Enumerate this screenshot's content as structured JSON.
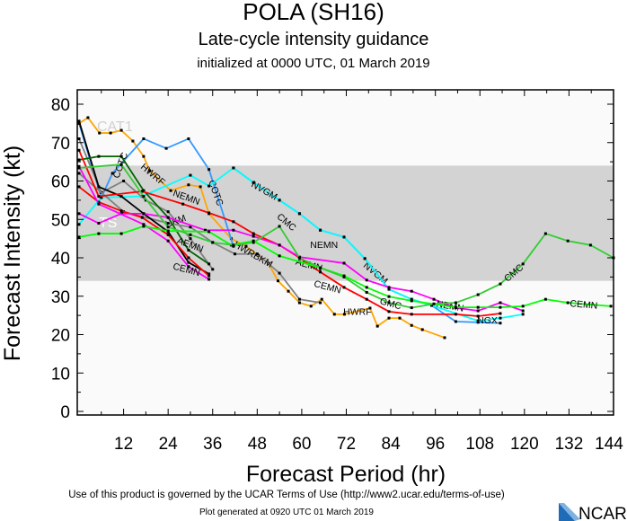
{
  "chart_data": {
    "type": "line",
    "title": "POLA (SH16)",
    "subtitle": "Late-cycle intensity guidance",
    "initialized": "initialized at 0000 UTC, 01 March 2019",
    "xlabel": "Forecast Period (hr)",
    "ylabel": "Forecast Intensity (kt)",
    "xlim": [
      0,
      144
    ],
    "ylim": [
      0,
      80
    ],
    "xticks": [
      12,
      24,
      36,
      48,
      60,
      72,
      84,
      96,
      108,
      120,
      132,
      144
    ],
    "yticks": [
      0,
      10,
      20,
      30,
      40,
      50,
      60,
      70,
      80
    ],
    "bands": [
      {
        "label": "TS",
        "from": 34,
        "to": 64,
        "color": "#d3d3d3",
        "label_color": "#ffffff"
      },
      {
        "label": "CAT1",
        "from": 64,
        "to": 83,
        "color": "#fafafa",
        "label_color": "#d0d0d0"
      }
    ],
    "series": [
      {
        "name": "HWRF",
        "color": "#ffa500",
        "points": [
          [
            0,
            75
          ],
          [
            2.4,
            76.5
          ],
          [
            5.5,
            72.5
          ],
          [
            8.5,
            72.5
          ],
          [
            11.4,
            73.2
          ],
          [
            14.5,
            70.4
          ],
          [
            17.4,
            66.4
          ],
          [
            19,
            62.7
          ],
          [
            24.7,
            57.5
          ],
          [
            29.5,
            59
          ],
          [
            32.7,
            58.5
          ],
          [
            35,
            51.5
          ],
          [
            41,
            45
          ],
          [
            45,
            43
          ],
          [
            51,
            38.6
          ],
          [
            53.6,
            34
          ],
          [
            56.4,
            31.3
          ],
          [
            59.4,
            28.3
          ],
          [
            62.5,
            27.4
          ],
          [
            65.4,
            29.2
          ],
          [
            68.8,
            25.3
          ],
          [
            71.5,
            25.3
          ],
          [
            78.4,
            26.9
          ],
          [
            80.4,
            22.2
          ],
          [
            83.5,
            24.3
          ],
          [
            86.4,
            24.3
          ],
          [
            89.6,
            22.4
          ],
          [
            92.5,
            21.3
          ],
          [
            98.5,
            19.2
          ]
        ],
        "labels": [
          {
            "text": "HWRF",
            "at": 20,
            "rot": 40
          },
          {
            "text": "HWRF",
            "at": 75,
            "rot": 0
          }
        ]
      },
      {
        "name": "COTC",
        "color": "#3399ff",
        "points": [
          [
            0,
            75
          ],
          [
            6,
            55.7
          ],
          [
            9,
            62
          ],
          [
            17.4,
            71
          ],
          [
            23.5,
            68.5
          ],
          [
            29.5,
            71
          ],
          [
            35,
            63
          ],
          [
            41.6,
            43
          ]
        ],
        "labels": [
          {
            "text": "COTC",
            "at": 11,
            "rot": -70
          },
          {
            "text": "COTC",
            "at": 37,
            "rot": 70
          }
        ]
      },
      {
        "name": "NVGM",
        "color": "#3399ff",
        "points": [
          [
            41.6,
            63.4
          ],
          [
            47,
            59.6
          ],
          [
            54,
            55
          ],
          [
            59.4,
            51.5
          ],
          [
            65,
            47.2
          ],
          [
            71.4,
            45.4
          ],
          [
            77,
            39.8
          ],
          [
            83.5,
            31.8
          ],
          [
            89.6,
            29.2
          ],
          [
            95,
            27.6
          ],
          [
            101.5,
            23.4
          ],
          [
            107.5,
            23.2
          ],
          [
            113.5,
            23
          ]
        ],
        "labels": [
          {
            "text": "NVGM",
            "at": 80,
            "rot": 40
          }
        ]
      },
      {
        "name": "NGX",
        "color": "#00ffff",
        "points": [
          [
            0,
            48.7
          ],
          [
            6,
            55.7
          ],
          [
            17,
            56
          ],
          [
            30,
            61.5
          ],
          [
            35,
            58.7
          ],
          [
            41.6,
            63.4
          ],
          [
            47,
            59.6
          ],
          [
            54,
            55
          ],
          [
            59.4,
            51.5
          ],
          [
            65,
            47.2
          ],
          [
            71.4,
            45.4
          ],
          [
            77,
            39.8
          ],
          [
            83.5,
            31.8
          ],
          [
            89.6,
            29.2
          ],
          [
            95,
            27.6
          ],
          [
            107.5,
            23.6
          ],
          [
            113.5,
            24.3
          ],
          [
            119.6,
            25.3
          ]
        ],
        "labels": [
          {
            "text": "NVGM",
            "at": 50,
            "rot": 30
          },
          {
            "text": "NGX",
            "at": 110,
            "rot": 0
          }
        ]
      },
      {
        "name": "UKM",
        "color": "#808080",
        "points": [
          [
            0,
            71
          ],
          [
            6,
            57
          ],
          [
            12,
            60
          ],
          [
            18,
            55
          ],
          [
            24,
            52
          ],
          [
            30,
            45
          ],
          [
            36,
            37
          ]
        ],
        "labels": [
          {
            "text": "UKM",
            "at": 26,
            "rot": -20
          }
        ]
      },
      {
        "name": "HWRFBKM",
        "color": "#808080",
        "points": [
          [
            0,
            62
          ],
          [
            12,
            52
          ],
          [
            24,
            49
          ],
          [
            30,
            48
          ],
          [
            36,
            44
          ],
          [
            42,
            41
          ],
          [
            48,
            41
          ],
          [
            54,
            36
          ],
          [
            59.4,
            29.2
          ],
          [
            65,
            28.3
          ]
        ],
        "labels": [
          {
            "text": "HWRBKM",
            "at": 47,
            "rot": 30
          }
        ]
      },
      {
        "name": "",
        "color": "#000000",
        "points": [
          [
            0,
            75.6
          ],
          [
            5.3,
            58.5
          ],
          [
            11.4,
            56
          ],
          [
            17.4,
            51.5
          ],
          [
            24,
            46.8
          ],
          [
            29.5,
            38.8
          ],
          [
            35,
            35.8
          ]
        ],
        "labels": []
      },
      {
        "name": "",
        "color": "#006400",
        "points": [
          [
            0,
            65.5
          ],
          [
            5.3,
            66.4
          ],
          [
            11.4,
            66.4
          ],
          [
            17.4,
            57.5
          ],
          [
            24,
            50.5
          ],
          [
            29.5,
            42
          ],
          [
            35,
            38.4
          ]
        ],
        "labels": []
      },
      {
        "name": "AEMN",
        "color": "#ff0000",
        "points": [
          [
            0,
            68
          ],
          [
            5.3,
            56
          ],
          [
            17,
            57.3
          ],
          [
            28,
            54
          ],
          [
            35,
            51.7
          ],
          [
            41.6,
            49.4
          ],
          [
            47,
            46.3
          ],
          [
            54,
            43.3
          ],
          [
            59.4,
            40
          ],
          [
            65,
            36.3
          ],
          [
            71.4,
            32.3
          ],
          [
            77.5,
            29.2
          ],
          [
            83.5,
            26
          ],
          [
            89.6,
            25.3
          ],
          [
            101.5,
            25.3
          ],
          [
            107.5,
            24.8
          ],
          [
            113.5,
            25.5
          ]
        ],
        "labels": [
          {
            "text": "AEMN",
            "at": 30,
            "rot": 20
          },
          {
            "text": "AEMN",
            "at": 62,
            "rot": 15
          }
        ]
      },
      {
        "name": "",
        "color": "#ff0000",
        "points": [
          [
            0,
            58.5
          ],
          [
            5.3,
            54.5
          ],
          [
            11.4,
            52.2
          ],
          [
            17,
            50.5
          ],
          [
            24,
            46
          ],
          [
            29.5,
            40
          ],
          [
            35,
            35.3
          ]
        ],
        "labels": []
      },
      {
        "name": "NEMN",
        "color": "#ff00ff",
        "points": [
          [
            0,
            51.5
          ],
          [
            5.3,
            49
          ],
          [
            11.4,
            51.5
          ],
          [
            17.4,
            51.5
          ],
          [
            24,
            50.5
          ],
          [
            34,
            47.2
          ],
          [
            41.6,
            47.2
          ],
          [
            47,
            45.6
          ],
          [
            54,
            43.3
          ],
          [
            59.4,
            40.2
          ],
          [
            71.4,
            38.6
          ],
          [
            77.5,
            34.2
          ],
          [
            83.5,
            32.3
          ],
          [
            89.6,
            31.3
          ],
          [
            95.6,
            29.2
          ],
          [
            101.5,
            27
          ],
          [
            107.5,
            26.2
          ],
          [
            113.5,
            28.3
          ],
          [
            119.6,
            26.2
          ]
        ],
        "labels": [
          {
            "text": "NEMN",
            "at": 29,
            "rot": 20
          },
          {
            "text": "NEMN",
            "at": 66,
            "rot": 0
          },
          {
            "text": "NEMN",
            "at": 100,
            "rot": 10
          }
        ]
      },
      {
        "name": "",
        "color": "#ff00ff",
        "points": [
          [
            0,
            63.8
          ],
          [
            5.3,
            54
          ],
          [
            17.4,
            48.7
          ],
          [
            24,
            44.4
          ],
          [
            29.5,
            37.7
          ],
          [
            35,
            34.4
          ]
        ],
        "labels": []
      },
      {
        "name": "CEMN",
        "color": "#00ff00",
        "points": [
          [
            0,
            45.4
          ],
          [
            5.3,
            46.3
          ],
          [
            11.4,
            46.3
          ],
          [
            17.4,
            48.2
          ],
          [
            24,
            47
          ],
          [
            35,
            46.8
          ],
          [
            41,
            43.3
          ],
          [
            47,
            44.4
          ],
          [
            54,
            40.5
          ],
          [
            65,
            37.4
          ],
          [
            71.4,
            35.3
          ],
          [
            77.5,
            32.3
          ],
          [
            83.5,
            29.9
          ],
          [
            89.6,
            28.8
          ],
          [
            101.5,
            27.1
          ],
          [
            107.5,
            27.1
          ],
          [
            113.5,
            27.1
          ],
          [
            119.6,
            27.4
          ],
          [
            125.7,
            29.2
          ],
          [
            131.7,
            28.3
          ],
          [
            143.3,
            27.4
          ]
        ],
        "labels": [
          {
            "text": "CEMN",
            "at": 29,
            "rot": 15
          },
          {
            "text": "CEMN",
            "at": 67,
            "rot": 15
          },
          {
            "text": "CEMN",
            "at": 136,
            "rot": 5
          }
        ]
      },
      {
        "name": "CMC",
        "color": "#33cc33",
        "points": [
          [
            0,
            63.4
          ],
          [
            11.4,
            64.3
          ],
          [
            17.4,
            56
          ],
          [
            24,
            48
          ],
          [
            30,
            46
          ],
          [
            36,
            44
          ],
          [
            41.6,
            43.3
          ],
          [
            47,
            44
          ],
          [
            54,
            48.2
          ],
          [
            59.4,
            40
          ],
          [
            65,
            37.4
          ],
          [
            71.4,
            35
          ],
          [
            77.5,
            31
          ],
          [
            83.5,
            28.3
          ],
          [
            89.6,
            27
          ],
          [
            95.6,
            28
          ],
          [
            101.5,
            28.3
          ],
          [
            107.5,
            30.4
          ],
          [
            113.5,
            33.2
          ],
          [
            119.6,
            38.4
          ],
          [
            125.7,
            46.3
          ],
          [
            131.7,
            44.4
          ],
          [
            137.8,
            43.3
          ],
          [
            144,
            40
          ]
        ],
        "labels": [
          {
            "text": "CMC",
            "at": 56,
            "rot": 40
          },
          {
            "text": "GMC",
            "at": 84,
            "rot": 15
          },
          {
            "text": "CMC",
            "at": 117,
            "rot": -40
          }
        ]
      }
    ]
  },
  "footer": {
    "terms": "Use of this product is governed by the UCAR Terms of Use (http://www2.ucar.edu/terms-of-use)",
    "generated": "Plot generated at 0920 UTC   01 March 2019",
    "logo": "NCAR"
  }
}
